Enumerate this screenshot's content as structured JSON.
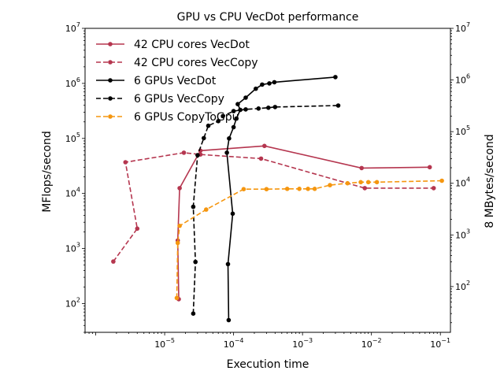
{
  "chart_data": {
    "type": "line",
    "title": "GPU vs CPU VecDot performance",
    "xlabel": "Execution time",
    "ylabel": "MFlops/second",
    "y2label": "8 MBytes/second",
    "xscale": "log",
    "yscale": "log",
    "y2scale": "log",
    "xlim": [
      7e-07,
      0.14
    ],
    "ylim": [
      30,
      10000000
    ],
    "y2lim": [
      13,
      10000000
    ],
    "x_ticks": [
      {
        "value": 1e-05,
        "label": "10",
        "exp": "−5"
      },
      {
        "value": 0.0001,
        "label": "10",
        "exp": "−4"
      },
      {
        "value": 0.001,
        "label": "10",
        "exp": "−3"
      },
      {
        "value": 0.01,
        "label": "10",
        "exp": "−2"
      },
      {
        "value": 0.1,
        "label": "10",
        "exp": "−1"
      }
    ],
    "y_ticks": [
      {
        "value": 100.0,
        "label": "10",
        "exp": "2"
      },
      {
        "value": 1000.0,
        "label": "10",
        "exp": "3"
      },
      {
        "value": 10000.0,
        "label": "10",
        "exp": "4"
      },
      {
        "value": 100000.0,
        "label": "10",
        "exp": "5"
      },
      {
        "value": 1000000.0,
        "label": "10",
        "exp": "6"
      },
      {
        "value": 10000000.0,
        "label": "10",
        "exp": "7"
      }
    ],
    "y2_ticks": [
      {
        "value": 100.0,
        "label": "10",
        "exp": "2"
      },
      {
        "value": 1000.0,
        "label": "10",
        "exp": "3"
      },
      {
        "value": 10000.0,
        "label": "10",
        "exp": "4"
      },
      {
        "value": 100000.0,
        "label": "10",
        "exp": "5"
      },
      {
        "value": 1000000.0,
        "label": "10",
        "exp": "6"
      },
      {
        "value": 10000000.0,
        "label": "10",
        "exp": "7"
      }
    ],
    "grid": false,
    "legend_position": "top-left",
    "series": [
      {
        "name": "42 CPU cores VecDot",
        "color": "#b5364f",
        "dash": "solid",
        "axis": "left",
        "points": [
          [
            1.6e-05,
            120
          ],
          [
            1.55e-05,
            1400
          ],
          [
            1.65e-05,
            12500
          ],
          [
            3.3e-05,
            60000
          ],
          [
            0.00028,
            73000
          ],
          [
            0.0072,
            29000
          ],
          [
            0.07,
            30000
          ]
        ]
      },
      {
        "name": "42 CPU cores VecCopy",
        "color": "#b5364f",
        "dash": "dashed",
        "axis": "left",
        "points": [
          [
            1.8e-06,
            580
          ],
          [
            4e-06,
            2300
          ],
          [
            2.7e-06,
            37000
          ],
          [
            1.9e-05,
            55000
          ],
          [
            3.3e-05,
            51000
          ],
          [
            0.00025,
            43000
          ],
          [
            0.008,
            12500
          ],
          [
            0.08,
            12500
          ]
        ]
      },
      {
        "name": "6 GPUs VecDot",
        "color": "#000000",
        "dash": "solid",
        "axis": "left",
        "points": [
          [
            8.5e-05,
            50
          ],
          [
            8.3e-05,
            520
          ],
          [
            9.7e-05,
            4300
          ],
          [
            8e-05,
            55000
          ],
          [
            8.6e-05,
            100000
          ],
          [
            0.0001,
            160000
          ],
          [
            0.00011,
            230000
          ],
          [
            0.000125,
            330000
          ],
          [
            0.000115,
            420000
          ],
          [
            0.00015,
            550000
          ],
          [
            0.00021,
            800000
          ],
          [
            0.00026,
            950000
          ],
          [
            0.00033,
            1000000
          ],
          [
            0.00039,
            1050000
          ],
          [
            0.003,
            1300000
          ]
        ]
      },
      {
        "name": "6 GPUs VecCopy",
        "color": "#000000",
        "dash": "dashed",
        "axis": "right",
        "points": [
          [
            2.6e-05,
            30
          ],
          [
            2.8e-05,
            300
          ],
          [
            2.6e-05,
            3500
          ],
          [
            3e-05,
            35000
          ],
          [
            3.7e-05,
            75000
          ],
          [
            4.3e-05,
            130000
          ],
          [
            6e-05,
            160000
          ],
          [
            7e-05,
            200000
          ],
          [
            0.0001,
            250000
          ],
          [
            0.00015,
            270000
          ],
          [
            0.00023,
            280000
          ],
          [
            0.00032,
            290000
          ],
          [
            0.0004,
            300000
          ],
          [
            0.0033,
            320000
          ]
        ]
      },
      {
        "name": "6 GPUs CopyToGpu",
        "color": "#f5960f",
        "dash": "dashed",
        "axis": "right",
        "points": [
          [
            1.5e-05,
            60
          ],
          [
            1.55e-05,
            700
          ],
          [
            1.65e-05,
            1500
          ],
          [
            4e-05,
            3100
          ],
          [
            0.00014,
            7700
          ],
          [
            0.0003,
            7700
          ],
          [
            0.0006,
            7800
          ],
          [
            0.0009,
            7800
          ],
          [
            0.0012,
            7800
          ],
          [
            0.0015,
            7800
          ],
          [
            0.0025,
            9200
          ],
          [
            0.0045,
            10000
          ],
          [
            0.007,
            10500
          ],
          [
            0.009,
            10500
          ],
          [
            0.012,
            10500
          ],
          [
            0.105,
            11200
          ]
        ]
      }
    ]
  }
}
